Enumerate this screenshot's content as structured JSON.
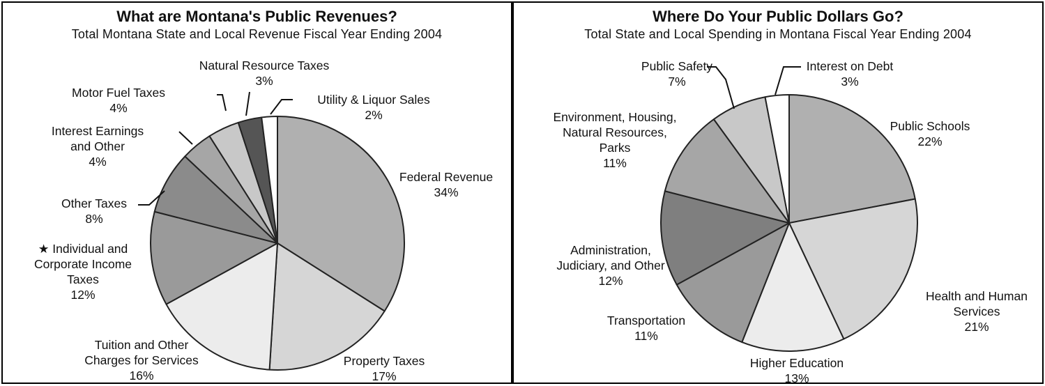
{
  "chart_data": [
    {
      "type": "pie",
      "title": "What are Montana's Public Revenues?",
      "subtitle": "Total Montana State and Local Revenue Fiscal Year Ending 2004",
      "slices": [
        {
          "label": [
            "Federal Revenue"
          ],
          "pct_label": "34%",
          "value": 34,
          "color": "#b0b0b0"
        },
        {
          "label": [
            "Property Taxes"
          ],
          "pct_label": "17%",
          "value": 17,
          "color": "#d6d6d6"
        },
        {
          "label": [
            "Tuition and Other",
            "Charges for Services"
          ],
          "pct_label": "16%",
          "value": 16,
          "color": "#ececec"
        },
        {
          "label": [
            "★ Individual and",
            "Corporate Income",
            "Taxes"
          ],
          "pct_label": "12%",
          "value": 12,
          "color": "#9a9a9a"
        },
        {
          "label": [
            "Other Taxes"
          ],
          "pct_label": "8%",
          "value": 8,
          "color": "#8b8b8b"
        },
        {
          "label": [
            "Interest Earnings",
            "and Other"
          ],
          "pct_label": "4%",
          "value": 4,
          "color": "#a6a6a6"
        },
        {
          "label": [
            "Motor Fuel Taxes"
          ],
          "pct_label": "4%",
          "value": 4,
          "color": "#c8c8c8"
        },
        {
          "label": [
            "Natural Resource Taxes"
          ],
          "pct_label": "3%",
          "value": 3,
          "color": "#555555"
        },
        {
          "label": [
            "Utility & Liquor Sales"
          ],
          "pct_label": "2%",
          "value": 2,
          "color": "#ffffff"
        }
      ]
    },
    {
      "type": "pie",
      "title": "Where Do Your Public Dollars Go?",
      "subtitle": "Total State and Local Spending in Montana Fiscal Year Ending 2004",
      "slices": [
        {
          "label": [
            "Public Schools"
          ],
          "pct_label": "22%",
          "value": 22,
          "color": "#b0b0b0"
        },
        {
          "label": [
            "Health and Human",
            "Services"
          ],
          "pct_label": "21%",
          "value": 21,
          "color": "#d6d6d6"
        },
        {
          "label": [
            "Higher Education"
          ],
          "pct_label": "13%",
          "value": 13,
          "color": "#ececec"
        },
        {
          "label": [
            "Transportation"
          ],
          "pct_label": "11%",
          "value": 11,
          "color": "#9a9a9a"
        },
        {
          "label": [
            "Administration,",
            "Judiciary, and Other"
          ],
          "pct_label": "12%",
          "value": 12,
          "color": "#7f7f7f"
        },
        {
          "label": [
            "Environment, Housing,",
            "Natural Resources,",
            "Parks"
          ],
          "pct_label": "11%",
          "value": 11,
          "color": "#a6a6a6"
        },
        {
          "label": [
            "Public Safety"
          ],
          "pct_label": "7%",
          "value": 7,
          "color": "#c8c8c8"
        },
        {
          "label": [
            "Interest on Debt"
          ],
          "pct_label": "3%",
          "value": 3,
          "color": "#ffffff"
        }
      ]
    }
  ]
}
